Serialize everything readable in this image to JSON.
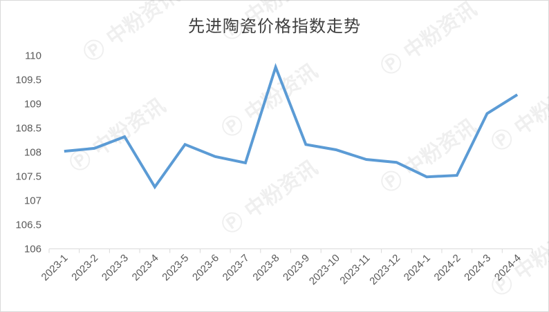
{
  "chart_data": {
    "type": "line",
    "title": "先进陶瓷价格指数走势",
    "xlabel": "",
    "ylabel": "",
    "categories": [
      "2023-1",
      "2023-2",
      "2023-3",
      "2023-4",
      "2023-5",
      "2023-6",
      "2023-7",
      "2023-8",
      "2023-9",
      "2023-10",
      "2023-11",
      "2023-12",
      "2024-1",
      "2024-2",
      "2024-3",
      "2024-4"
    ],
    "values": [
      108.02,
      108.08,
      108.32,
      107.28,
      108.16,
      107.91,
      107.78,
      109.76,
      108.16,
      108.05,
      107.85,
      107.79,
      107.49,
      107.52,
      108.8,
      109.19
    ],
    "ylim": [
      106,
      110
    ],
    "yticks": [
      "106",
      "106.5",
      "107",
      "107.5",
      "108",
      "108.5",
      "109",
      "109.5",
      "110"
    ],
    "grid": false,
    "legend": "none",
    "line_color": "#5b9bd5"
  },
  "watermark": "中粉资讯"
}
